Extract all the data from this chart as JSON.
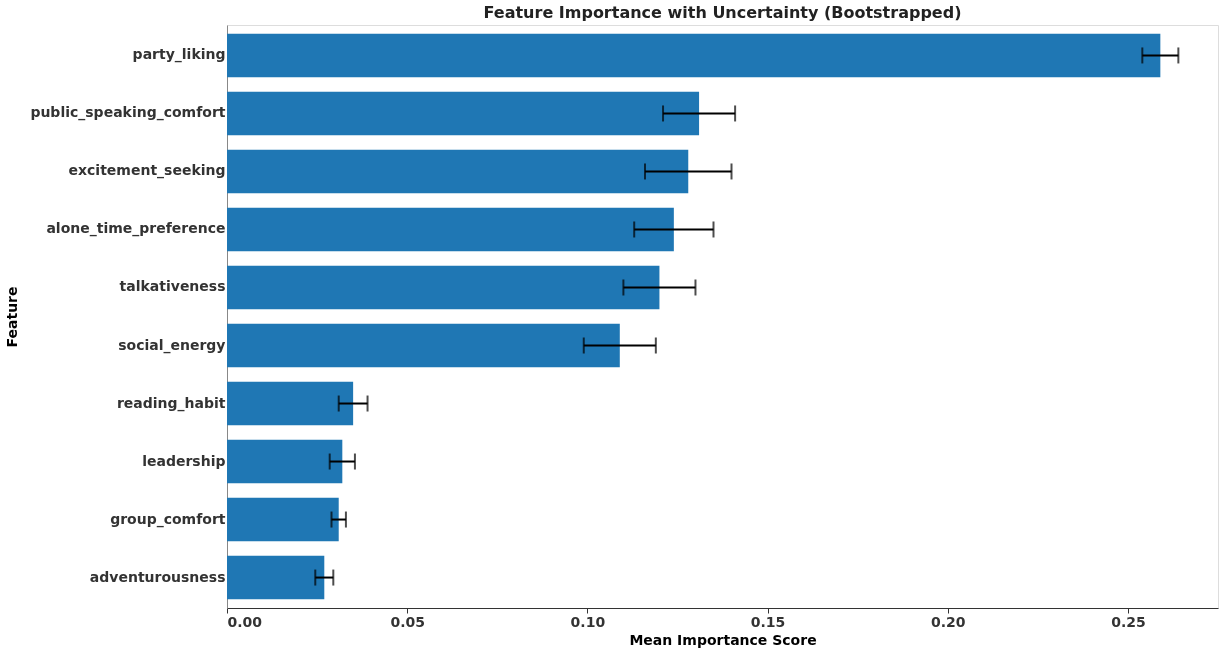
{
  "chart_data": {
    "type": "bar",
    "orientation": "horizontal",
    "title": "Feature Importance with Uncertainty (Bootstrapped)",
    "xlabel": "Mean Importance Score",
    "ylabel": "Feature",
    "categories": [
      "party_liking",
      "public_speaking_comfort",
      "excitement_seeking",
      "alone_time_preference",
      "talkativeness",
      "social_energy",
      "reading_habit",
      "leadership",
      "group_comfort",
      "adventurousness"
    ],
    "values": [
      0.259,
      0.131,
      0.128,
      0.124,
      0.12,
      0.109,
      0.035,
      0.032,
      0.031,
      0.027
    ],
    "errors": [
      0.005,
      0.01,
      0.012,
      0.011,
      0.01,
      0.01,
      0.004,
      0.0035,
      0.002,
      0.0025
    ],
    "color": "#1f77b4",
    "xlim": [
      0,
      0.275
    ],
    "xticks": [
      {
        "value": 0,
        "label": "0.00"
      },
      {
        "value": 0.05,
        "label": "0.05"
      },
      {
        "value": 0.1,
        "label": "0.10"
      },
      {
        "value": 0.15,
        "label": "0.15"
      },
      {
        "value": 0.2,
        "label": "0.20"
      },
      {
        "value": 0.25,
        "label": "0.25"
      }
    ],
    "grid": false
  }
}
